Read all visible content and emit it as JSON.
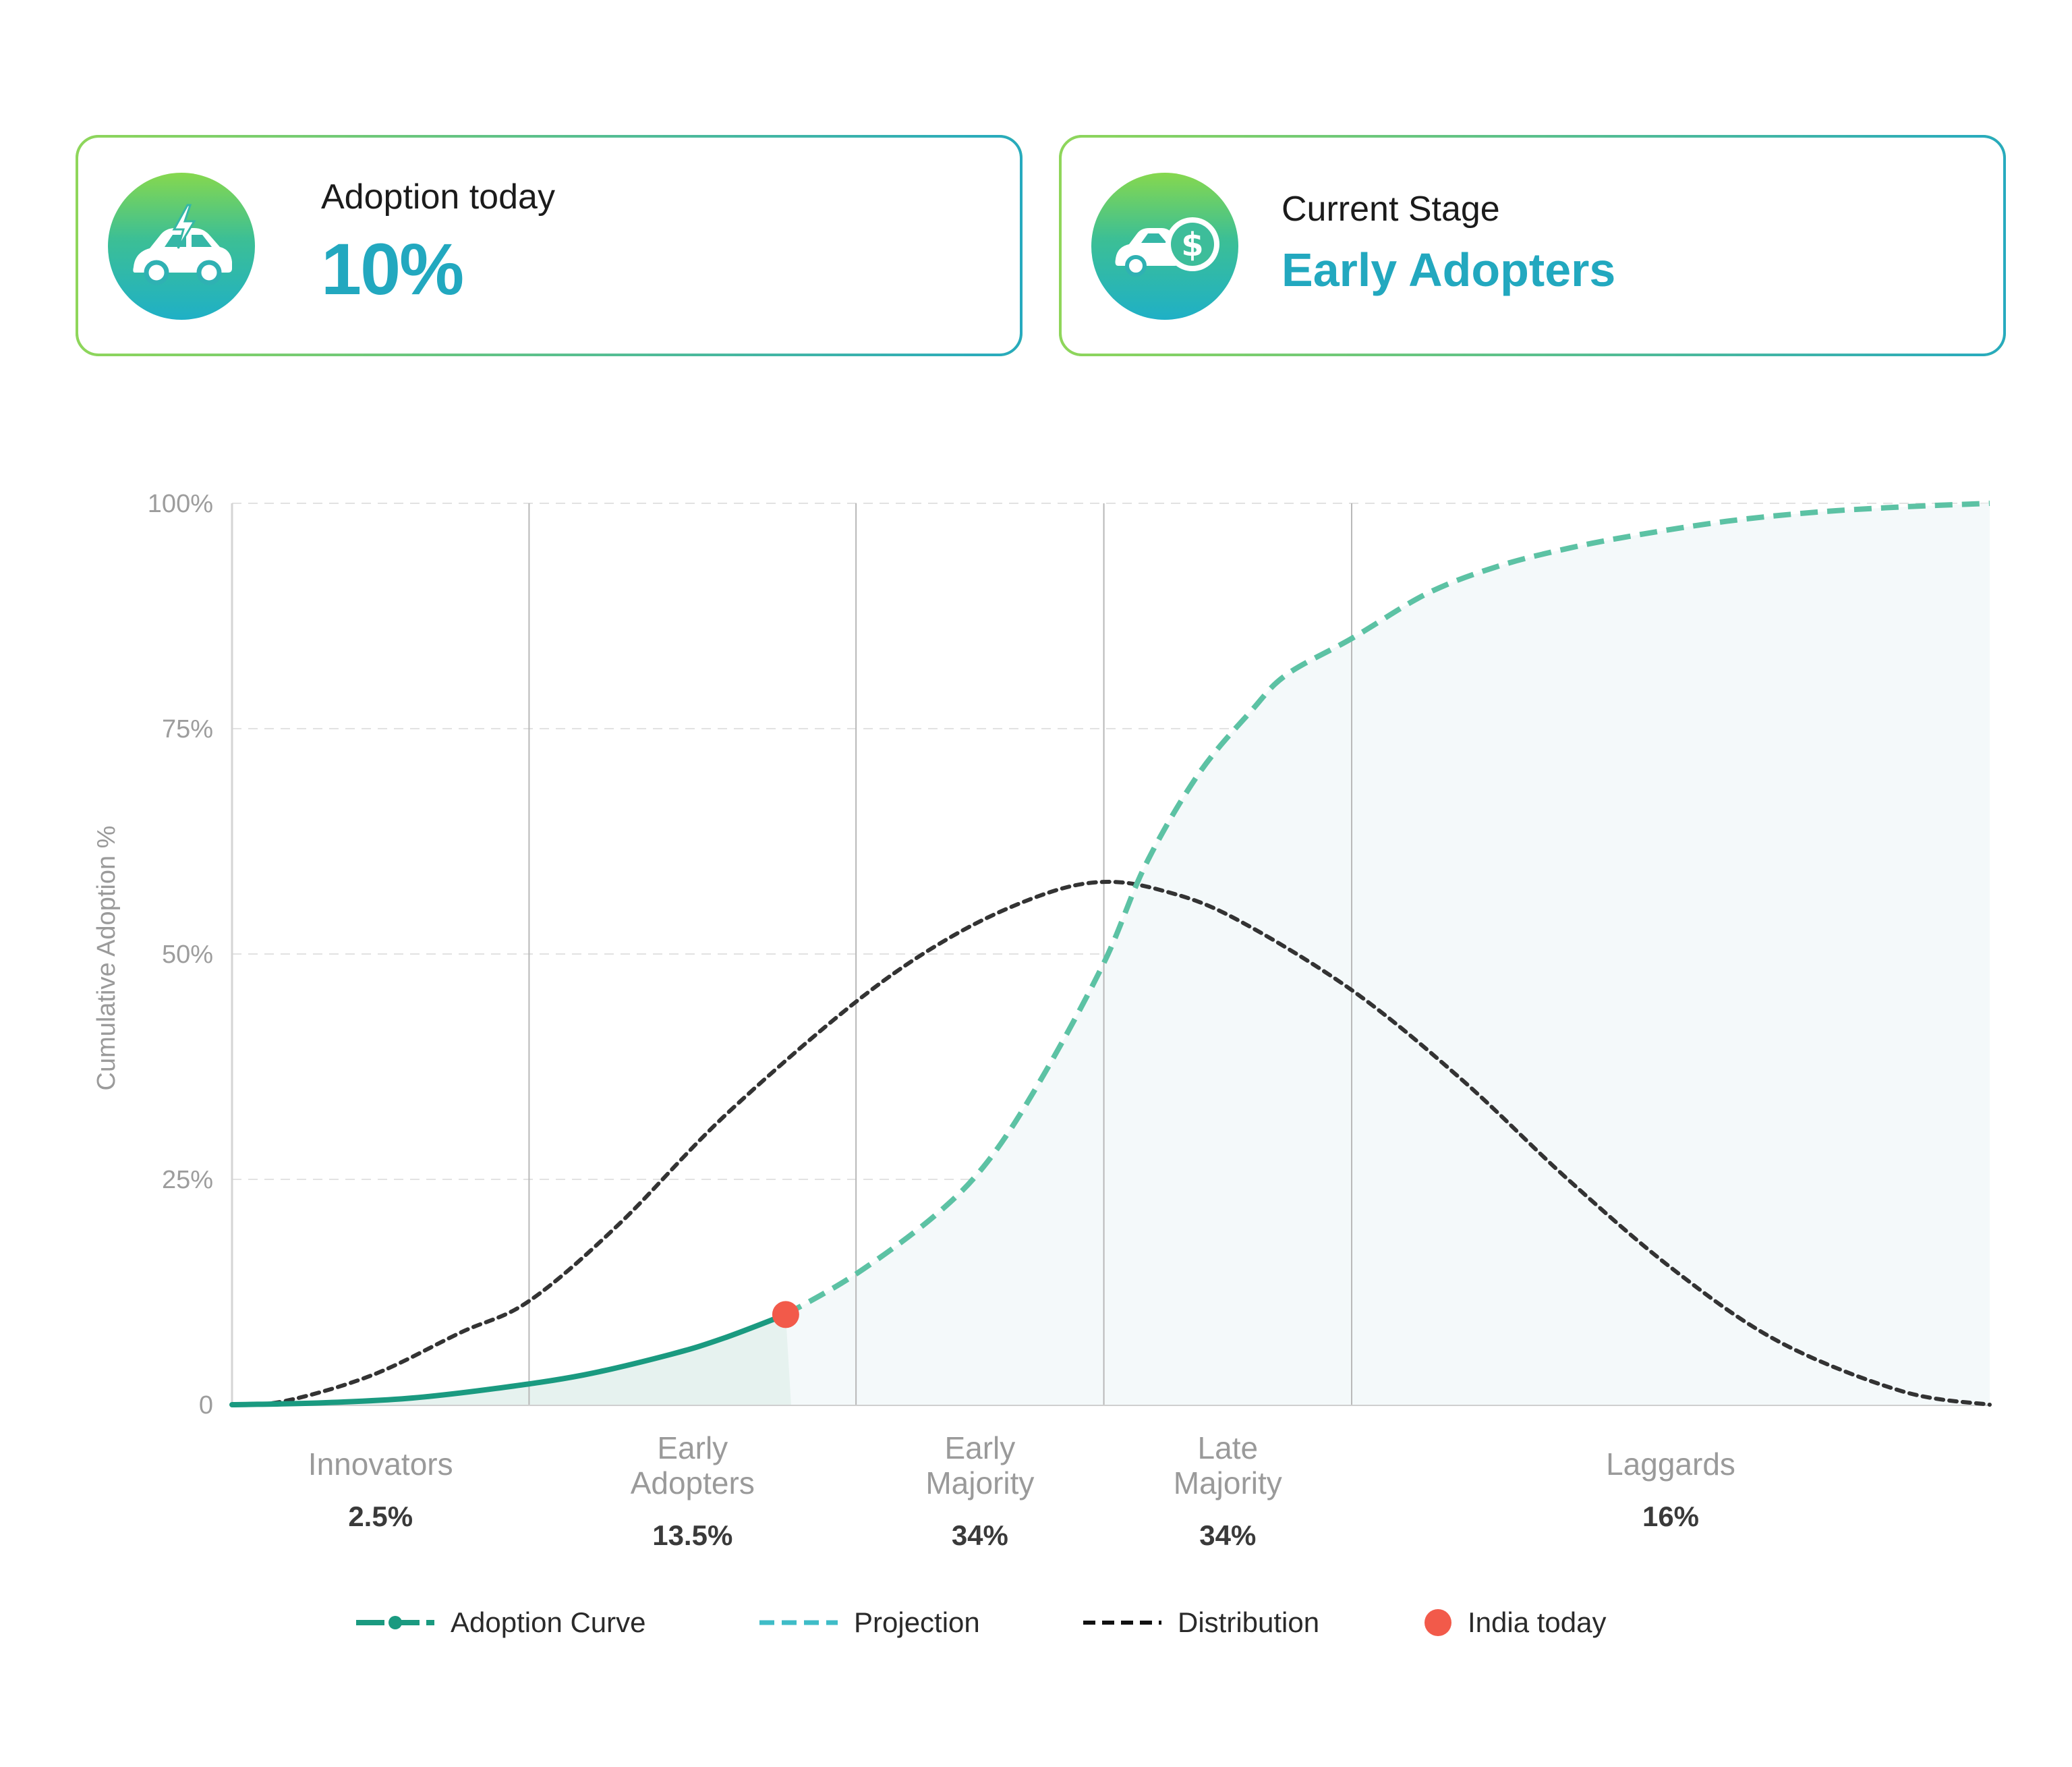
{
  "cards": {
    "adoption": {
      "label": "Adoption today",
      "value": "10%",
      "icon": "electric-car-icon"
    },
    "stage": {
      "label": "Current Stage",
      "value": "Early Adopters",
      "icon": "car-dollar-icon"
    }
  },
  "chart_data": {
    "type": "line",
    "title": "",
    "xlabel": "",
    "ylabel": "Cumulative Adoption %",
    "ylim": [
      0,
      100
    ],
    "xlim": [
      0,
      100
    ],
    "yticks": [
      "0",
      "25%",
      "50%",
      "75%",
      "100%"
    ],
    "ytick_values": [
      0,
      25,
      50,
      75,
      100
    ],
    "grid": true,
    "colors": {
      "adoption": "#1a9a80",
      "projection": "#5cc2a4",
      "distribution": "#333333",
      "india_today": "#f25a4a",
      "fill": "#f4f9fa",
      "fill_adoption": "#e6f2ef"
    },
    "segments": [
      {
        "name": "Innovators",
        "lines": [
          "Innovators"
        ],
        "share": "2.5%",
        "x_start": 0,
        "x_end": 16.9
      },
      {
        "name": "Early Adopters",
        "lines": [
          "Early",
          "Adopters"
        ],
        "share": "13.5%",
        "x_start": 16.9,
        "x_end": 35.5
      },
      {
        "name": "Early Majority",
        "lines": [
          "Early",
          "Majority"
        ],
        "share": "34%",
        "x_start": 35.5,
        "x_end": 49.6
      },
      {
        "name": "Late Majority",
        "lines": [
          "Late",
          "Majority"
        ],
        "share": "34%",
        "x_start": 49.6,
        "x_end": 63.7
      },
      {
        "name": "Laggards",
        "lines": [
          "Laggards"
        ],
        "share": "16%",
        "x_start": 63.7,
        "x_end": 100
      }
    ],
    "series": [
      {
        "name": "Adoption Curve",
        "style": "solid",
        "x": [
          0,
          5,
          10,
          15,
          20,
          25,
          28,
          31.5
        ],
        "y": [
          0,
          0.2,
          0.7,
          1.8,
          3.3,
          5.6,
          7.4,
          10
        ]
      },
      {
        "name": "Projection",
        "style": "dashed",
        "x": [
          31.5,
          35.5,
          40,
          43,
          46,
          49.6,
          52,
          55,
          58,
          60,
          63.7,
          68,
          72,
          76,
          80,
          85,
          90,
          95,
          100
        ],
        "y": [
          10,
          14.5,
          21,
          27,
          36,
          49,
          60,
          70,
          77,
          81,
          85,
          90,
          93,
          95,
          96.5,
          98,
          99,
          99.6,
          100
        ]
      },
      {
        "name": "Distribution",
        "style": "dotted",
        "x": [
          0,
          3,
          8,
          13,
          16.9,
          22,
          28,
          35.5,
          41,
          46,
          49.6,
          53,
          57,
          63.7,
          70,
          76,
          82,
          88,
          95,
          100
        ],
        "y": [
          0,
          0.4,
          3.3,
          8,
          11.5,
          20,
          32,
          44.7,
          52,
          56.5,
          58,
          57,
          54,
          46,
          36,
          25,
          15,
          7,
          1.5,
          0
        ]
      }
    ],
    "markers": [
      {
        "name": "India today",
        "x": 31.5,
        "y": 10
      }
    ]
  }
}
